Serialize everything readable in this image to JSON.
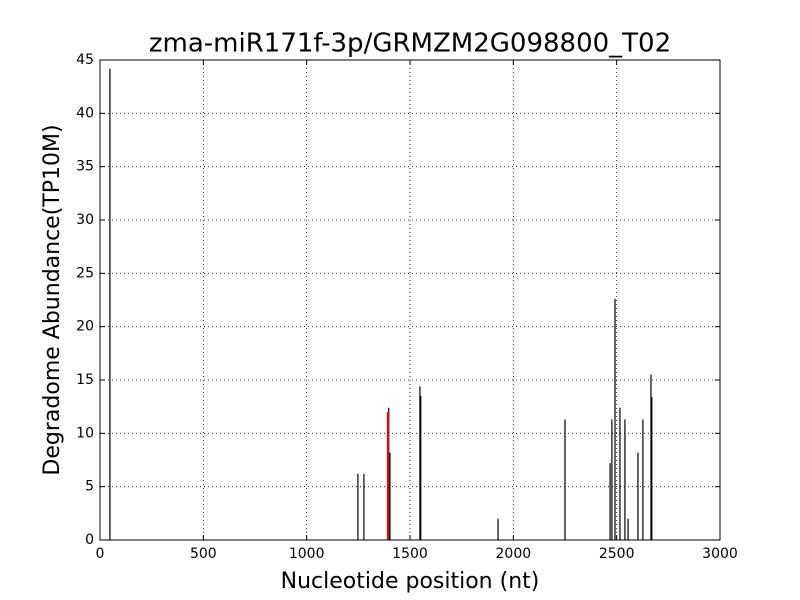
{
  "chart_data": {
    "type": "vlines",
    "title": "zma-miR171f-3p/GRMZM2G098800_T02",
    "x_label": "Nucleotide position (nt)",
    "y_label": "Degradome Abundance(TP10M)",
    "series": [
      {
        "color": "#000000",
        "x": [
          48,
          1248,
          1277,
          1397,
          1403,
          1548,
          1552,
          1926,
          2250,
          2468,
          2477,
          2492,
          2516,
          2540,
          2555,
          2603,
          2627,
          2666,
          2670
        ],
        "values": [
          44.2,
          6.2,
          6.2,
          12.4,
          8.2,
          14.4,
          13.5,
          2.0,
          11.3,
          7.2,
          11.3,
          22.6,
          12.4,
          11.3,
          2.0,
          8.2,
          11.3,
          15.5,
          13.4
        ]
      },
      {
        "color": "#ff0000",
        "x": [
          1393
        ],
        "values": [
          12.0
        ]
      }
    ],
    "xlim": [
      0,
      3000
    ],
    "xticks": [
      0,
      500,
      1000,
      1500,
      2000,
      2500,
      3000
    ],
    "ylim": [
      0,
      45
    ],
    "yticks": [
      0,
      5,
      10,
      15,
      20,
      25,
      30,
      35,
      40,
      45
    ],
    "grid": true
  }
}
